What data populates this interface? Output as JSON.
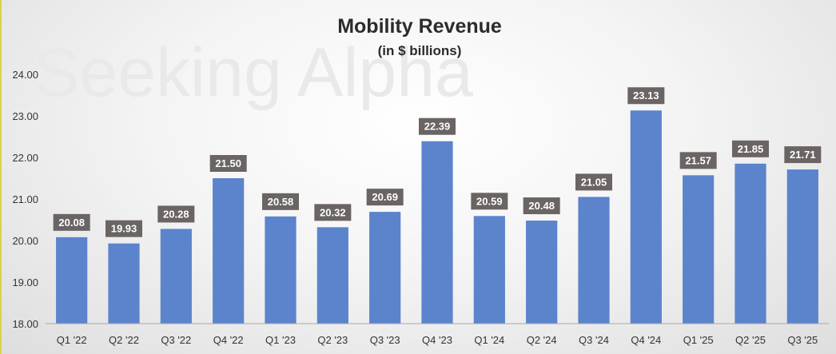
{
  "watermark": "Seeking Alpha",
  "colors": {
    "bar": "#5b84cd",
    "label_bg": "#6a6463",
    "axis": "#a8a8a8"
  },
  "chart_data": {
    "type": "bar",
    "title": "Mobility Revenue",
    "subtitle": "(in $ billions)",
    "xlabel": "",
    "ylabel": "",
    "ylim": [
      18,
      24
    ],
    "yticks": [
      18,
      19,
      20,
      21,
      22,
      23,
      24
    ],
    "ytick_labels": [
      "18.00",
      "19.00",
      "20.00",
      "21.00",
      "22.00",
      "23.00",
      "24.00"
    ],
    "grid": false,
    "categories": [
      "Q1 '22",
      "Q2 '22",
      "Q3 '22",
      "Q4 '22",
      "Q1 '23",
      "Q2 '23",
      "Q3 '23",
      "Q4 '23",
      "Q1 '24",
      "Q2 '24",
      "Q3 '24",
      "Q4 '24",
      "Q1 '25",
      "Q2 '25",
      "Q3 '25"
    ],
    "values": [
      20.08,
      19.93,
      20.28,
      21.5,
      20.58,
      20.32,
      20.69,
      22.39,
      20.59,
      20.48,
      21.05,
      23.13,
      21.57,
      21.85,
      21.71
    ],
    "value_labels": [
      "20.08",
      "19.93",
      "20.28",
      "21.50",
      "20.58",
      "20.32",
      "20.69",
      "22.39",
      "20.59",
      "20.48",
      "21.05",
      "23.13",
      "21.57",
      "21.85",
      "21.71"
    ]
  }
}
